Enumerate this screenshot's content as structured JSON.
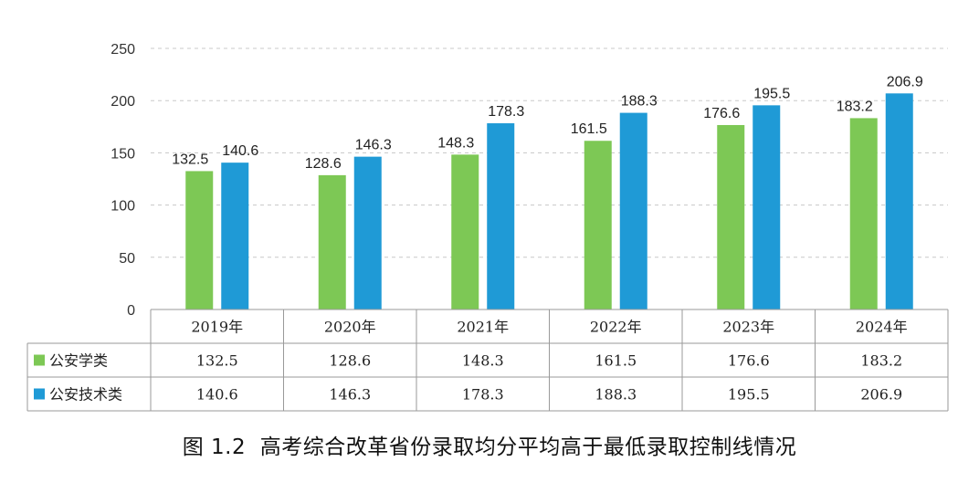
{
  "chart_data": {
    "type": "bar",
    "categories": [
      "2019年",
      "2020年",
      "2021年",
      "2022年",
      "2023年",
      "2024年"
    ],
    "series": [
      {
        "name": "公安学类",
        "color": "#7dc855",
        "values": [
          132.5,
          128.6,
          148.3,
          161.5,
          176.6,
          183.2
        ],
        "labels": [
          "132.5",
          "128.6",
          "148.3",
          "161.5",
          "176.6",
          "183.2"
        ]
      },
      {
        "name": "公安技术类",
        "color": "#1f9ad6",
        "values": [
          140.6,
          146.3,
          178.3,
          188.3,
          195.5,
          206.9
        ],
        "labels": [
          "140.6",
          "146.3",
          "178.3",
          "188.3",
          "195.5",
          "206.9"
        ]
      }
    ],
    "ylim": [
      0,
      250
    ],
    "yticks": [
      0,
      50,
      100,
      150,
      200,
      250
    ],
    "ytick_labels": [
      "0",
      "50",
      "100",
      "150",
      "200",
      "250"
    ],
    "grid": "horizontal-dashed",
    "legend": "data-table",
    "title": "",
    "xlabel": "",
    "ylabel": ""
  },
  "caption": {
    "figure_label": "图 1.2",
    "text": "高考综合改革省份录取均分平均高于最低录取控制线情况"
  },
  "colors": {
    "grid": "#c8c8c8",
    "table_border": "#9a9a9a"
  }
}
